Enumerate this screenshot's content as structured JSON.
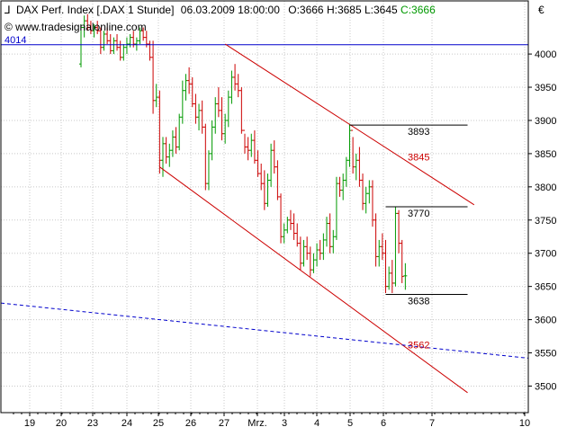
{
  "header": {
    "instrument": "DAX Perf. Index [.DAX  1 Stunde]",
    "datetime": "06.03.2009 18:00:00",
    "open": "O:3666",
    "high": "H:3685",
    "low": "L:3645",
    "close": "C:3666",
    "watermark": "© www.tradesignalonline.com",
    "currency": "€"
  },
  "colors": {
    "up": "#009900",
    "down": "#cc0000",
    "channel": "#cc0000",
    "level_line": "#000000",
    "horizontal_blue": "#0000cc",
    "trend_blue": "#0000cc",
    "grid": "#c8c8c8",
    "close_label": "#009900"
  },
  "chart_data": {
    "type": "ohlc",
    "ylim": [
      3460,
      4080
    ],
    "y_ticks": [
      3500,
      3550,
      3600,
      3650,
      3700,
      3750,
      3800,
      3850,
      3900,
      3950,
      4000
    ],
    "x_tick_labels": [
      "19",
      "20",
      "23",
      "24",
      "25",
      "26",
      "27",
      "Mrz.",
      "3",
      "4",
      "5",
      "6",
      "7",
      "10"
    ],
    "grid": true,
    "horizontal_level": {
      "label": "4014",
      "value": 4014
    },
    "levels": [
      {
        "label": "3893",
        "value": 3893,
        "from_bar": 82,
        "to_bar": 118,
        "color": "black"
      },
      {
        "label": "3845",
        "value": 3845,
        "color": "red"
      },
      {
        "label": "3770",
        "value": 3770,
        "from_bar": 93,
        "to_bar": 118,
        "color": "black"
      },
      {
        "label": "3638",
        "value": 3638,
        "from_bar": 93,
        "to_bar": 118,
        "color": "black"
      },
      {
        "label": "3562",
        "value": 3562,
        "color": "red"
      }
    ],
    "channel_upper": {
      "from": {
        "bar": 44,
        "value": 4015
      },
      "to": {
        "bar": 120,
        "value": 3773
      }
    },
    "channel_lower": {
      "from": {
        "bar": 24,
        "value": 3830
      },
      "to": {
        "bar": 118,
        "value": 3490
      }
    },
    "trend_blue": {
      "from": {
        "bar": 0,
        "value": 3625
      },
      "to": {
        "bar": 126,
        "value": 3542
      }
    },
    "bars": [
      [
        3985,
        4045,
        3980,
        4040
      ],
      [
        4040,
        4058,
        4025,
        4050
      ],
      [
        4050,
        4060,
        4035,
        4040
      ],
      [
        4040,
        4050,
        4030,
        4035
      ],
      [
        4035,
        4045,
        4025,
        4040
      ],
      [
        4040,
        4050,
        4030,
        4035
      ],
      [
        4035,
        4040,
        4000,
        4010
      ],
      [
        4010,
        4035,
        4005,
        4030
      ],
      [
        4030,
        4040,
        4015,
        4020
      ],
      [
        4020,
        4030,
        4000,
        4005
      ],
      [
        4005,
        4025,
        4000,
        4020
      ],
      [
        4020,
        4030,
        4005,
        4010
      ],
      [
        4010,
        4020,
        3990,
        3995
      ],
      [
        3995,
        4015,
        3990,
        4010
      ],
      [
        4010,
        4025,
        4000,
        4015
      ],
      [
        4015,
        4030,
        4010,
        4025
      ],
      [
        4025,
        4035,
        4010,
        4015
      ],
      [
        4015,
        4025,
        4005,
        4020
      ],
      [
        4020,
        4040,
        4015,
        4035
      ],
      [
        4035,
        4040,
        4020,
        4025
      ],
      [
        4025,
        4035,
        4010,
        4015
      ],
      [
        4015,
        4020,
        3990,
        3995
      ],
      [
        3995,
        4020,
        3910,
        3930
      ],
      [
        3930,
        3955,
        3920,
        3935
      ],
      [
        3935,
        3945,
        3820,
        3840
      ],
      [
        3840,
        3875,
        3815,
        3865
      ],
      [
        3865,
        3875,
        3835,
        3845
      ],
      [
        3845,
        3865,
        3830,
        3855
      ],
      [
        3855,
        3885,
        3845,
        3875
      ],
      [
        3875,
        3890,
        3850,
        3860
      ],
      [
        3860,
        3910,
        3855,
        3905
      ],
      [
        3905,
        3960,
        3895,
        3945
      ],
      [
        3945,
        3970,
        3930,
        3960
      ],
      [
        3960,
        3980,
        3940,
        3955
      ],
      [
        3955,
        3965,
        3920,
        3925
      ],
      [
        3925,
        3940,
        3895,
        3905
      ],
      [
        3905,
        3925,
        3885,
        3915
      ],
      [
        3915,
        3930,
        3880,
        3890
      ],
      [
        3890,
        3895,
        3795,
        3805
      ],
      [
        3805,
        3855,
        3795,
        3850
      ],
      [
        3850,
        3900,
        3840,
        3890
      ],
      [
        3890,
        3935,
        3880,
        3925
      ],
      [
        3925,
        3950,
        3905,
        3915
      ],
      [
        3915,
        3935,
        3870,
        3880
      ],
      [
        3880,
        3910,
        3865,
        3900
      ],
      [
        3900,
        3945,
        3890,
        3935
      ],
      [
        3935,
        3975,
        3925,
        3965
      ],
      [
        3965,
        3985,
        3945,
        3955
      ],
      [
        3955,
        3970,
        3935,
        3945
      ],
      [
        3945,
        3950,
        3880,
        3885
      ],
      [
        3885,
        3880,
        3850,
        3860
      ],
      [
        3860,
        3875,
        3840,
        3855
      ],
      [
        3855,
        3880,
        3845,
        3870
      ],
      [
        3870,
        3885,
        3835,
        3840
      ],
      [
        3840,
        3855,
        3815,
        3820
      ],
      [
        3820,
        3835,
        3795,
        3805
      ],
      [
        3805,
        3825,
        3765,
        3775
      ],
      [
        3775,
        3820,
        3770,
        3810
      ],
      [
        3810,
        3865,
        3800,
        3855
      ],
      [
        3855,
        3870,
        3820,
        3830
      ],
      [
        3830,
        3840,
        3780,
        3785
      ],
      [
        3785,
        3790,
        3715,
        3725
      ],
      [
        3725,
        3745,
        3715,
        3735
      ],
      [
        3735,
        3755,
        3730,
        3750
      ],
      [
        3750,
        3765,
        3735,
        3745
      ],
      [
        3745,
        3760,
        3720,
        3730
      ],
      [
        3730,
        3745,
        3710,
        3715
      ],
      [
        3715,
        3725,
        3675,
        3685
      ],
      [
        3685,
        3720,
        3680,
        3710
      ],
      [
        3710,
        3725,
        3690,
        3700
      ],
      [
        3700,
        3710,
        3665,
        3675
      ],
      [
        3675,
        3700,
        3670,
        3690
      ],
      [
        3690,
        3715,
        3680,
        3705
      ],
      [
        3705,
        3720,
        3690,
        3700
      ],
      [
        3700,
        3730,
        3690,
        3720
      ],
      [
        3720,
        3755,
        3710,
        3745
      ],
      [
        3745,
        3760,
        3700,
        3710
      ],
      [
        3710,
        3735,
        3700,
        3725
      ],
      [
        3725,
        3815,
        3720,
        3805
      ],
      [
        3805,
        3815,
        3785,
        3795
      ],
      [
        3795,
        3820,
        3780,
        3810
      ],
      [
        3810,
        3845,
        3800,
        3840
      ],
      [
        3840,
        3895,
        3830,
        3885
      ],
      [
        3885,
        3875,
        3820,
        3830
      ],
      [
        3830,
        3850,
        3810,
        3840
      ],
      [
        3840,
        3860,
        3800,
        3810
      ],
      [
        3810,
        3820,
        3765,
        3775
      ],
      [
        3775,
        3800,
        3760,
        3790
      ],
      [
        3790,
        3810,
        3775,
        3800
      ],
      [
        3800,
        3810,
        3740,
        3750
      ],
      [
        3750,
        3760,
        3680,
        3695
      ],
      [
        3695,
        3720,
        3680,
        3710
      ],
      [
        3710,
        3730,
        3690,
        3700
      ],
      [
        3700,
        3720,
        3640,
        3650
      ],
      [
        3650,
        3680,
        3645,
        3670
      ],
      [
        3670,
        3690,
        3640,
        3655
      ],
      [
        3655,
        3770,
        3650,
        3760
      ],
      [
        3760,
        3765,
        3700,
        3715
      ],
      [
        3715,
        3720,
        3655,
        3665
      ],
      [
        3666,
        3685,
        3645,
        3666
      ]
    ]
  }
}
